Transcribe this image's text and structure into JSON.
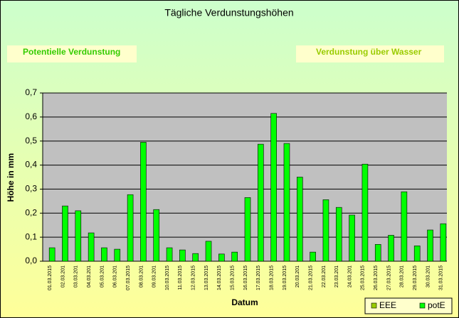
{
  "chart_data": {
    "type": "bar",
    "title": "Tägliche Verdunstungshöhen",
    "annotations": [
      "Potentielle Verdunstung",
      "Verdunstung über Wasser"
    ],
    "xlabel": "Datum",
    "ylabel": "Höhe in mm",
    "categories": [
      "01.03.2015",
      "02.03.201",
      "03.03.201",
      "04.03.201",
      "05.03.201",
      "06.03.201",
      "07.03.2015",
      "08.03.201",
      "09.03.201",
      "10.03.2015",
      "11.03.2015",
      "12.03.2015",
      "13.03.2015",
      "14.03.2015",
      "15.03.2015",
      "16.03.2015",
      "17.03.2015",
      "18.03.2015",
      "19.03.2015",
      "20.03.201",
      "21.03.2015",
      "22.03.201",
      "23.03.201",
      "24.03.201",
      "25.03.2015",
      "26.03.2015",
      "27.03.2015",
      "28.03.201",
      "29.03.2015",
      "30.03.201",
      "31.03.2015"
    ],
    "series": [
      {
        "name": "EEE",
        "color": "#99cc00",
        "values": [
          null,
          null,
          null,
          null,
          null,
          null,
          null,
          null,
          null,
          null,
          null,
          null,
          null,
          null,
          null,
          null,
          null,
          null,
          null,
          null,
          null,
          null,
          null,
          null,
          null,
          null,
          null,
          null,
          null,
          null,
          null
        ]
      },
      {
        "name": "potE",
        "color": "#00ff00",
        "values": [
          0.056,
          0.23,
          0.21,
          0.118,
          0.056,
          0.05,
          0.277,
          0.495,
          0.215,
          0.056,
          0.047,
          0.032,
          0.083,
          0.03,
          0.038,
          0.265,
          0.487,
          0.615,
          0.49,
          0.35,
          0.038,
          0.256,
          0.224,
          0.192,
          0.404,
          0.07,
          0.108,
          0.289,
          0.064,
          0.13,
          0.156
        ]
      }
    ],
    "ylim": [
      0,
      0.7
    ],
    "yticks": [
      {
        "value": 0,
        "label": "0,0"
      },
      {
        "value": 0.1,
        "label": "0,1"
      },
      {
        "value": 0.2,
        "label": "0,2"
      },
      {
        "value": 0.3,
        "label": "0,3"
      },
      {
        "value": 0.4,
        "label": "0,4"
      },
      {
        "value": 0.5,
        "label": "0,5"
      },
      {
        "value": 0.6,
        "label": "0,6"
      },
      {
        "value": 0.7,
        "label": "0,7"
      }
    ],
    "grid": true,
    "legend": "bottom-right"
  }
}
